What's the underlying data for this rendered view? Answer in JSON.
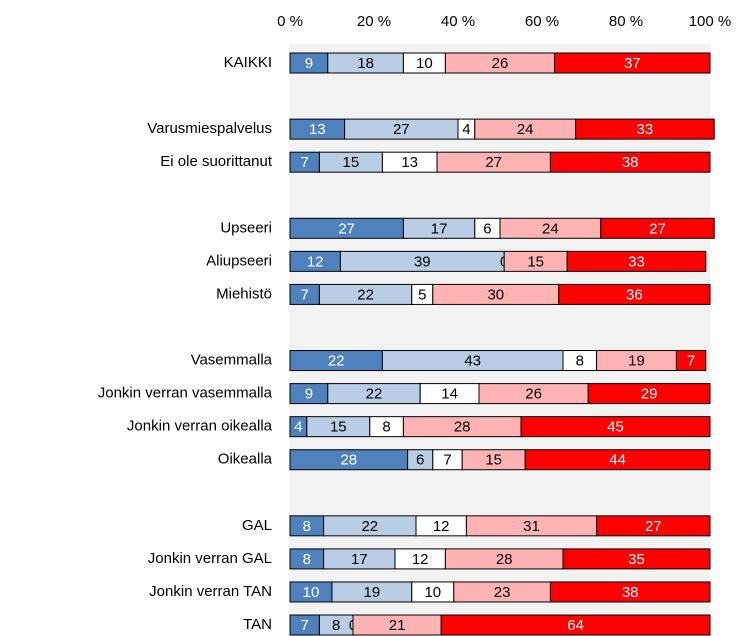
{
  "chart_data": {
    "type": "stacked-bar-horizontal",
    "categories": [
      "KAIKKI",
      null,
      "Varusmiespalvelus",
      "Ei ole suorittanut",
      null,
      "Upseeri",
      "Aliupseeri",
      "Miehistö",
      null,
      "Vasemmalla",
      "Jonkin verran vasemmalla",
      "Jonkin verran oikealla",
      "Oikealla",
      null,
      "GAL",
      "Jonkin verran GAL",
      "Jonkin verran TAN",
      "TAN"
    ],
    "series": [
      {
        "color": "#4f81bd",
        "values": [
          9,
          null,
          13,
          7,
          null,
          27,
          12,
          7,
          null,
          22,
          9,
          4,
          28,
          null,
          8,
          8,
          10,
          7
        ]
      },
      {
        "color": "#b9cde5",
        "values": [
          18,
          null,
          27,
          15,
          null,
          17,
          39,
          22,
          null,
          43,
          22,
          15,
          6,
          null,
          22,
          17,
          19,
          8
        ]
      },
      {
        "color": "#ffffff",
        "values": [
          10,
          null,
          4,
          13,
          null,
          6,
          0,
          5,
          null,
          8,
          14,
          8,
          7,
          null,
          12,
          12,
          10,
          0
        ]
      },
      {
        "color": "#ffb3b3",
        "values": [
          26,
          null,
          24,
          27,
          null,
          24,
          15,
          30,
          null,
          19,
          26,
          28,
          15,
          null,
          31,
          28,
          23,
          21
        ]
      },
      {
        "color": "#ff0000",
        "values": [
          37,
          null,
          33,
          38,
          null,
          27,
          33,
          36,
          null,
          7,
          29,
          45,
          44,
          null,
          27,
          35,
          38,
          64
        ]
      }
    ],
    "xlim": [
      0,
      100
    ],
    "xticks": [
      {
        "value": 0,
        "label": "0 %"
      },
      {
        "value": 20,
        "label": "20 %"
      },
      {
        "value": 40,
        "label": "40 %"
      },
      {
        "value": 60,
        "label": "60 %"
      },
      {
        "value": 80,
        "label": "80 %"
      },
      {
        "value": 100,
        "label": "100 %"
      }
    ]
  }
}
